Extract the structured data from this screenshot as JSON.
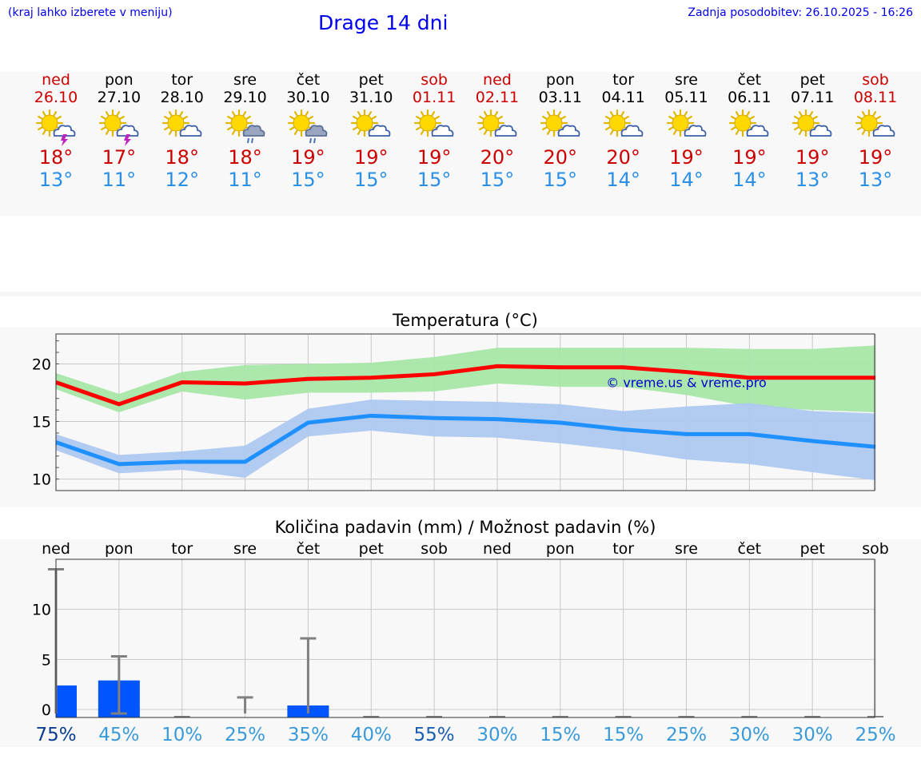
{
  "header": {
    "hint": "(kraj lahko izberete v meniju)",
    "title": "Drage 14 dni",
    "updated": "Zadnja posodobitev: 26.10.2025 - 16:26"
  },
  "days": [
    {
      "name": "ned",
      "date": "26.10",
      "icon": "sun-cloud-thunder-icon",
      "max": "18°",
      "min": "13°",
      "weekend": true
    },
    {
      "name": "pon",
      "date": "27.10",
      "icon": "sun-cloud-thunder-icon",
      "max": "17°",
      "min": "11°",
      "weekend": false
    },
    {
      "name": "tor",
      "date": "28.10",
      "icon": "sun-cloud-icon",
      "max": "18°",
      "min": "12°",
      "weekend": false
    },
    {
      "name": "sre",
      "date": "29.10",
      "icon": "sun-cloud-rain-icon",
      "max": "18°",
      "min": "11°",
      "weekend": false
    },
    {
      "name": "čet",
      "date": "30.10",
      "icon": "sun-cloud-rain-icon",
      "max": "19°",
      "min": "15°",
      "weekend": false
    },
    {
      "name": "pet",
      "date": "31.10",
      "icon": "sun-cloud-icon",
      "max": "19°",
      "min": "15°",
      "weekend": false
    },
    {
      "name": "sob",
      "date": "01.11",
      "icon": "sun-cloud-icon",
      "max": "19°",
      "min": "15°",
      "weekend": true
    },
    {
      "name": "ned",
      "date": "02.11",
      "icon": "sun-cloud-icon",
      "max": "20°",
      "min": "15°",
      "weekend": true
    },
    {
      "name": "pon",
      "date": "03.11",
      "icon": "sun-cloud-icon",
      "max": "20°",
      "min": "15°",
      "weekend": false
    },
    {
      "name": "tor",
      "date": "04.11",
      "icon": "sun-cloud-icon",
      "max": "20°",
      "min": "14°",
      "weekend": false
    },
    {
      "name": "sre",
      "date": "05.11",
      "icon": "sun-cloud-icon",
      "max": "19°",
      "min": "14°",
      "weekend": false
    },
    {
      "name": "čet",
      "date": "06.11",
      "icon": "sun-cloud-icon",
      "max": "19°",
      "min": "14°",
      "weekend": false
    },
    {
      "name": "pet",
      "date": "07.11",
      "icon": "sun-cloud-icon",
      "max": "19°",
      "min": "13°",
      "weekend": false
    },
    {
      "name": "sob",
      "date": "08.11",
      "icon": "sun-cloud-icon",
      "max": "19°",
      "min": "13°",
      "weekend": true
    }
  ],
  "chart_data": [
    {
      "type": "line",
      "title": "Temperatura (°C)",
      "xlabel": "",
      "ylabel": "",
      "ylim": [
        9,
        22.6
      ],
      "yticks": [
        10,
        15,
        20
      ],
      "x": [
        0,
        1,
        2,
        3,
        4,
        5,
        6,
        7,
        8,
        9,
        10,
        11,
        12,
        13
      ],
      "series": [
        {
          "name": "max",
          "color": "#ff0000",
          "values": [
            18.4,
            16.5,
            18.4,
            18.3,
            18.7,
            18.8,
            19.1,
            19.8,
            19.7,
            19.7,
            19.3,
            18.8,
            18.8,
            18.8
          ]
        },
        {
          "name": "max-range-upper",
          "color": "#a8e6a8",
          "values": [
            19.2,
            17.4,
            19.3,
            19.9,
            20.0,
            20.1,
            20.6,
            21.4,
            21.4,
            21.4,
            21.4,
            21.3,
            21.3,
            21.6
          ]
        },
        {
          "name": "max-range-lower",
          "color": "#a8e6a8",
          "values": [
            17.8,
            15.8,
            17.6,
            16.9,
            17.5,
            17.5,
            17.6,
            18.3,
            18.0,
            18.0,
            17.3,
            16.3,
            16.0,
            15.8
          ]
        },
        {
          "name": "min",
          "color": "#1e90ff",
          "values": [
            13.2,
            11.3,
            11.5,
            11.5,
            14.9,
            15.5,
            15.3,
            15.2,
            14.9,
            14.3,
            13.9,
            13.9,
            13.3,
            12.8
          ]
        },
        {
          "name": "min-range-upper",
          "color": "#aec8f0",
          "values": [
            13.9,
            12.1,
            12.4,
            12.9,
            16.1,
            16.9,
            16.8,
            16.7,
            16.5,
            15.9,
            16.3,
            16.6,
            15.9,
            15.7
          ]
        },
        {
          "name": "min-range-lower",
          "color": "#aec8f0",
          "values": [
            12.5,
            10.5,
            10.8,
            10.1,
            13.7,
            14.2,
            13.7,
            13.6,
            13.1,
            12.5,
            11.7,
            11.3,
            10.6,
            9.9
          ]
        }
      ],
      "annotation": "© vreme.us & vreme.pro"
    },
    {
      "type": "bar",
      "title": "Količina padavin (mm) / Možnost padavin (%)",
      "categories": [
        "ned",
        "pon",
        "tor",
        "sre",
        "čet",
        "pet",
        "sob",
        "ned",
        "pon",
        "tor",
        "sre",
        "čet",
        "pet",
        "sob"
      ],
      "values": [
        2.4,
        2.9,
        0,
        0,
        0.4,
        0,
        0,
        0,
        0,
        0,
        0,
        0,
        0,
        0
      ],
      "error_max": [
        14.0,
        5.3,
        0,
        1.2,
        7.1,
        0,
        0,
        0,
        0,
        0,
        0,
        0,
        0,
        0
      ],
      "probability": [
        "75%",
        "45%",
        "10%",
        "25%",
        "35%",
        "40%",
        "55%",
        "30%",
        "15%",
        "15%",
        "25%",
        "30%",
        "30%",
        "25%"
      ],
      "ylim": [
        -0.8,
        15
      ],
      "yticks": [
        0,
        5,
        10
      ],
      "bar_color": "#0055ff"
    }
  ]
}
